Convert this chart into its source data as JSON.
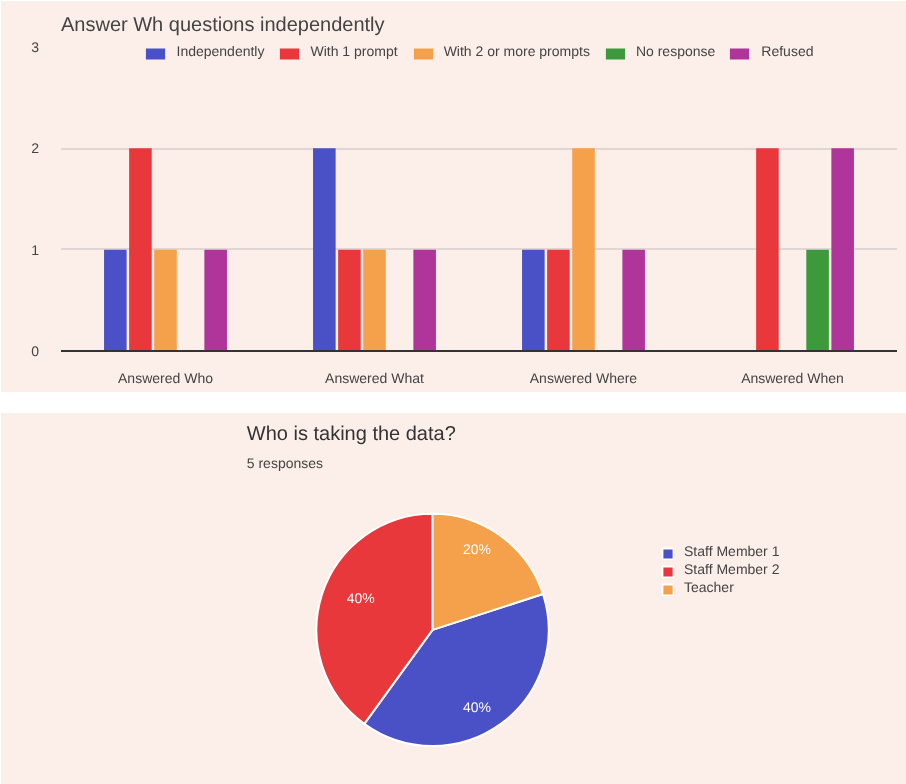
{
  "chart_data": [
    {
      "type": "bar",
      "title": "Answer Wh questions independently",
      "categories": [
        "Answered Who",
        "Answered What",
        "Answered Where",
        "Answered When"
      ],
      "series": [
        {
          "name": "Independently",
          "color": "#4a50c6",
          "values": [
            1,
            2,
            1,
            0
          ]
        },
        {
          "name": "With 1 prompt",
          "color": "#e8383b",
          "values": [
            2,
            1,
            1,
            2
          ]
        },
        {
          "name": "With 2 or more prompts",
          "color": "#f5a04a",
          "values": [
            1,
            1,
            2,
            0
          ]
        },
        {
          "name": "No response",
          "color": "#3c9a3c",
          "values": [
            0,
            0,
            0,
            1
          ]
        },
        {
          "name": "Refused",
          "color": "#b0359a",
          "values": [
            1,
            1,
            1,
            2
          ]
        }
      ],
      "ylim": [
        0,
        3
      ],
      "yticks": [
        0,
        1,
        2,
        3
      ],
      "grid": "y",
      "legend": "top"
    },
    {
      "type": "pie",
      "title": "Who is taking the data?",
      "subtitle": "5 responses",
      "categories": [
        "Staff Member 1",
        "Staff Member 2",
        "Teacher"
      ],
      "values": [
        40,
        40,
        20
      ],
      "colors": [
        "#4a50c6",
        "#e8383b",
        "#f5a04a"
      ],
      "value_labels": [
        "40%",
        "40%",
        "20%"
      ],
      "legend": "right"
    }
  ]
}
